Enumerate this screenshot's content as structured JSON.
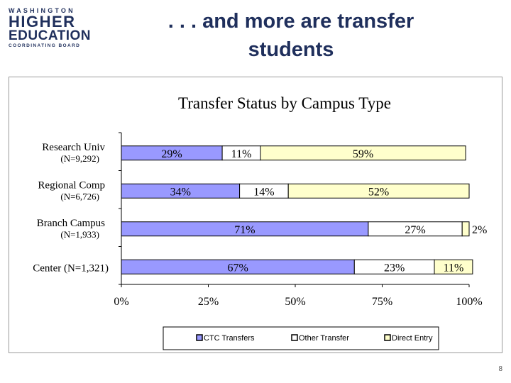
{
  "header": {
    "logo": {
      "line1": "WASHINGTON",
      "line2": "HIGHER",
      "line3": "EDUCATION",
      "line4": "COORDINATING BOARD"
    },
    "title_line1": ". . . and more are transfer",
    "title_line2": "students"
  },
  "page_number": "8",
  "colors": {
    "ctc": "#9999ff",
    "other": "#ffffff",
    "direct": "#ffffcc",
    "border": "#000000"
  },
  "chart_data": {
    "type": "bar",
    "orientation": "horizontal",
    "stacked": true,
    "title": "Transfer Status by Campus Type",
    "categories": [
      {
        "name": "Research Univ",
        "n": "(N=9,292)"
      },
      {
        "name": "Regional Comp",
        "n": "(N=6,726)"
      },
      {
        "name": "Branch Campus",
        "n": "(N=1,933)"
      },
      {
        "name": "Center",
        "n": "(N=1,321)"
      }
    ],
    "series": [
      {
        "name": "CTC Transfers",
        "color": "#9999ff",
        "values": [
          29,
          34,
          71,
          67
        ],
        "labels": [
          "29%",
          "34%",
          "71%",
          "67%"
        ]
      },
      {
        "name": "Other Transfer",
        "color": "#ffffff",
        "values": [
          11,
          14,
          27,
          23
        ],
        "labels": [
          "11%",
          "14%",
          "27%",
          "23%"
        ]
      },
      {
        "name": "Direct Entry",
        "color": "#ffffcc",
        "values": [
          59,
          52,
          2,
          11
        ],
        "labels": [
          "59%",
          "52%",
          "2%",
          "11%"
        ]
      }
    ],
    "xlim": [
      0,
      100
    ],
    "xticks": [
      "0%",
      "25%",
      "50%",
      "75%",
      "100%"
    ],
    "xlabel": "",
    "ylabel": "",
    "grid": false,
    "legend": "bottom"
  }
}
